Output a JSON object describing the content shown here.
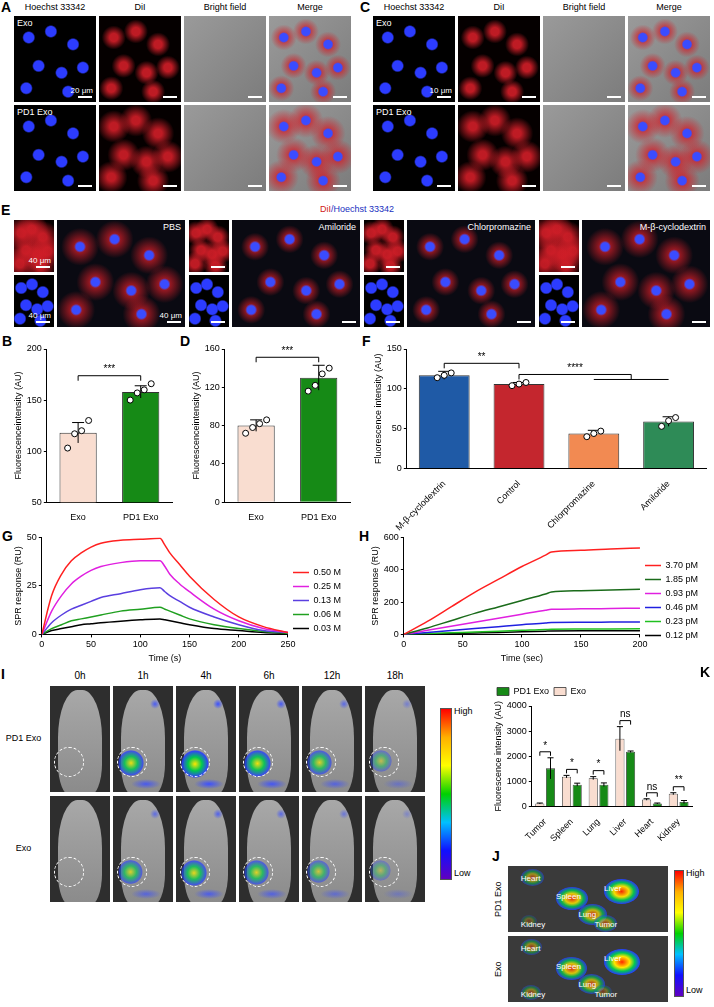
{
  "chart_data": [
    {
      "panel": "B",
      "type": "bar",
      "categories": [
        "Exo",
        "PD1 Exo"
      ],
      "values": [
        118,
        158
      ],
      "errors": [
        10,
        6
      ],
      "points": [
        [
          103,
          117,
          120,
          130
        ],
        [
          150,
          157,
          160,
          166
        ]
      ],
      "colors": [
        "#f9ddd0",
        "#168a16"
      ],
      "y_label": "Fluorescenceintensity (AU)",
      "ylim": [
        50,
        200
      ],
      "yticks": [
        50,
        100,
        150,
        200
      ],
      "grid": false,
      "annotations": [
        {
          "text": "***",
          "between": [
            0,
            1
          ]
        }
      ]
    },
    {
      "panel": "D",
      "type": "bar",
      "categories": [
        "Exo",
        "PD1 Exo"
      ],
      "values": [
        80,
        130
      ],
      "errors": [
        6,
        13
      ],
      "points": [
        [
          72,
          78,
          82,
          86
        ],
        [
          116,
          122,
          134,
          140
        ]
      ],
      "colors": [
        "#f9ddd0",
        "#168a16"
      ],
      "y_label": "Fluorescenceintensity (AU)",
      "ylim": [
        0,
        160
      ],
      "yticks": [
        0,
        40,
        80,
        120,
        160
      ],
      "grid": false,
      "annotations": [
        {
          "text": "***",
          "between": [
            0,
            1
          ]
        }
      ]
    },
    {
      "panel": "F",
      "type": "bar",
      "categories": [
        "M-β-cyclodextrin",
        "Control",
        "Chlorpromazine",
        "Amiloride"
      ],
      "values": [
        117,
        106,
        44,
        59
      ],
      "errors": [
        5,
        2,
        4,
        6
      ],
      "points": [
        [
          114,
          117,
          120
        ],
        [
          104,
          106,
          108
        ],
        [
          40,
          44,
          47
        ],
        [
          53,
          60,
          64
        ]
      ],
      "colors": [
        "#1f5aa6",
        "#c4262e",
        "#f28a52",
        "#2e8b57"
      ],
      "y_label": "Fluorescence intensity (AU)",
      "ylim": [
        0,
        150
      ],
      "yticks": [
        0,
        50,
        100,
        150
      ],
      "grid": false,
      "annotations": [
        {
          "text": "**",
          "between": [
            0,
            1
          ]
        },
        {
          "text": "****",
          "between": [
            1,
            [
              2,
              3
            ]
          ]
        }
      ]
    },
    {
      "panel": "G",
      "type": "line",
      "x": [
        0,
        10,
        20,
        30,
        40,
        50,
        60,
        80,
        100,
        120,
        125,
        130,
        140,
        150,
        175,
        200,
        225,
        250
      ],
      "series": [
        {
          "name": "0.50 M",
          "color": "#ff2020",
          "values": [
            0,
            20,
            31,
            38,
            42,
            45,
            47,
            48.5,
            49,
            49.5,
            46,
            42,
            36,
            30,
            18,
            9,
            4,
            1
          ]
        },
        {
          "name": "0.25 M",
          "color": "#e020e0",
          "values": [
            0,
            12,
            20,
            26,
            30,
            33,
            35,
            37,
            38,
            38,
            35,
            31,
            26,
            22,
            13,
            7,
            3,
            1
          ]
        },
        {
          "name": "0.13 M",
          "color": "#5a3fe0",
          "values": [
            0,
            6,
            10,
            13,
            15,
            17,
            19,
            21,
            23,
            24,
            22,
            20,
            17,
            14,
            9,
            5,
            2,
            1
          ]
        },
        {
          "name": "0.06 M",
          "color": "#20a020",
          "values": [
            0,
            3,
            5,
            7,
            8,
            9,
            10,
            12,
            13,
            14,
            13,
            12,
            10,
            8,
            5,
            3,
            1.5,
            0.5
          ]
        },
        {
          "name": "0.03 M",
          "color": "#000000",
          "values": [
            0,
            2,
            3,
            4,
            5,
            5.5,
            6,
            6.8,
            7.5,
            8,
            7.5,
            7,
            6,
            5,
            3,
            2,
            1,
            0.5
          ]
        }
      ],
      "x_label": "Time (s)",
      "y_label": "SPR response (RU)",
      "xlim": [
        0,
        250
      ],
      "xticks": [
        0,
        50,
        100,
        150,
        200,
        250
      ],
      "ylim": [
        0,
        50
      ],
      "yticks": [
        0,
        25,
        50
      ],
      "grid": false,
      "legend": "right"
    },
    {
      "panel": "H",
      "type": "line",
      "x": [
        0,
        20,
        40,
        60,
        80,
        100,
        120,
        125,
        150,
        175,
        200
      ],
      "series": [
        {
          "name": "3.70 pM",
          "color": "#ff2020",
          "values": [
            0,
            80,
            170,
            260,
            340,
            420,
            490,
            510,
            520,
            528,
            535
          ]
        },
        {
          "name": "1.85 pM",
          "color": "#1a6b1a",
          "values": [
            0,
            40,
            85,
            130,
            170,
            210,
            250,
            262,
            270,
            275,
            280
          ]
        },
        {
          "name": "0.93 pM",
          "color": "#e020e0",
          "values": [
            0,
            25,
            50,
            75,
            100,
            125,
            150,
            155,
            158,
            160,
            162
          ]
        },
        {
          "name": "0.46 pM",
          "color": "#2020e0",
          "values": [
            0,
            12,
            24,
            36,
            48,
            60,
            70,
            74,
            75,
            76,
            77
          ]
        },
        {
          "name": "0.23 pM",
          "color": "#20c020",
          "values": [
            0,
            5,
            10,
            15,
            20,
            25,
            30,
            32,
            33,
            34,
            35
          ]
        },
        {
          "name": "0.12 pM",
          "color": "#000000",
          "values": [
            0,
            3,
            6,
            9,
            12,
            16,
            20,
            21,
            22,
            22,
            22
          ]
        }
      ],
      "x_label": "Time (sec)",
      "y_label": "SPR response (RU)",
      "xlim": [
        0,
        200
      ],
      "xticks": [
        0,
        50,
        100,
        150,
        200
      ],
      "ylim": [
        0,
        600
      ],
      "yticks": [
        0,
        200,
        400,
        600
      ],
      "grid": false,
      "legend": "right"
    },
    {
      "panel": "K",
      "type": "bar",
      "categories": [
        "Tumor",
        "Spleen",
        "Lung",
        "Liver",
        "Heart",
        "Kidney"
      ],
      "series": [
        {
          "name": "Exo",
          "color": "#f9ddd0",
          "values": [
            120,
            1190,
            1130,
            2700,
            280,
            510
          ],
          "errors": [
            20,
            50,
            60,
            480,
            30,
            40
          ]
        },
        {
          "name": "PD1 Exo",
          "color": "#168a16",
          "values": [
            1520,
            870,
            870,
            2180,
            120,
            180
          ],
          "errors": [
            420,
            60,
            70,
            30,
            20,
            60
          ]
        }
      ],
      "y_label": "Fluorescence intensity (AU)",
      "ylim": [
        0,
        4000
      ],
      "yticks": [
        0,
        1000,
        2000,
        3000,
        4000
      ],
      "grid": false,
      "legend": "upper left",
      "annotations": [
        {
          "text": "*",
          "category": 0
        },
        {
          "text": "*",
          "category": 1
        },
        {
          "text": "*",
          "category": 2
        },
        {
          "text": "ns",
          "category": 3
        },
        {
          "text": "ns",
          "category": 4
        },
        {
          "text": "**",
          "category": 5
        }
      ]
    }
  ],
  "image_panels": {
    "A": {
      "panel": "A",
      "columns": [
        "Hoechst 33342",
        "DiI",
        "Bright field",
        "Merge"
      ],
      "rows": [
        "Exo",
        "PD1 Exo"
      ],
      "scale_bar": "20 μm"
    },
    "C": {
      "panel": "C",
      "columns": [
        "Hoechst 33342",
        "DiI",
        "Bright field",
        "Merge"
      ],
      "rows": [
        "Exo",
        "PD1 Exo"
      ],
      "scale_bar": "10 μm"
    },
    "E": {
      "panel": "E",
      "stain_label": [
        "DiI",
        "/Hoechst 33342"
      ],
      "conditions": [
        "PBS",
        "Amiloride",
        "Chlorpromazine",
        "M-β-cyclodextrin"
      ],
      "scale_bar": "40 μm"
    },
    "I": {
      "panel": "I",
      "times": [
        "0h",
        "1h",
        "4h",
        "6h",
        "12h",
        "18h"
      ],
      "rows": [
        "PD1 Exo",
        "Exo"
      ],
      "colorbar": [
        "High",
        "Low"
      ]
    },
    "J": {
      "panel": "J",
      "rows": [
        "PD1 Exo",
        "Exo"
      ],
      "organs": [
        "Heart",
        "Liver",
        "Spleen",
        "Lung",
        "Kidney",
        "Tumor"
      ],
      "colorbar": [
        "High",
        "Low"
      ]
    }
  }
}
